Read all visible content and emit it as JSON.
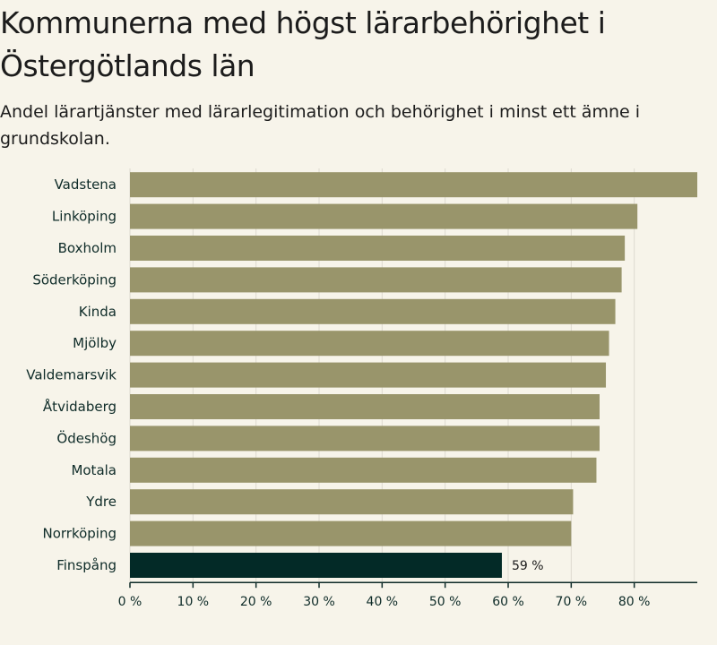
{
  "title": "Kommunerna med högst lärarbehörighet i Östergötlands län",
  "subtitle": "Andel lärartjänster med lärarlegitimation och behörighet i minst ett ämne i grundskolan.",
  "colors": {
    "bar": "#99956b",
    "highlight": "#032a27",
    "grid": "#dedad0",
    "axis": "#0e2b28",
    "background": "#f7f4ea"
  },
  "chart_data": {
    "type": "bar",
    "orientation": "horizontal",
    "title": "Kommunerna med högst lärarbehörighet i Östergötlands län",
    "subtitle": "Andel lärartjänster med lärarlegitimation och behörighet i minst ett ämne i grundskolan.",
    "categories": [
      "Vadstena",
      "Linköping",
      "Boxholm",
      "Söderköping",
      "Kinda",
      "Mjölby",
      "Valdemarsvik",
      "Åtvidaberg",
      "Ödeshög",
      "Motala",
      "Ydre",
      "Norrköping",
      "Finspång"
    ],
    "values": [
      90,
      80.5,
      78.5,
      78,
      77,
      76,
      75.5,
      74.5,
      74.5,
      74,
      70.3,
      70,
      59
    ],
    "highlight": "Finspång",
    "data_labels": [
      {
        "category": "Finspång",
        "text": "59 %"
      }
    ],
    "xlim": [
      0,
      90
    ],
    "ticks": [
      0,
      10,
      20,
      30,
      40,
      50,
      60,
      70,
      80
    ],
    "tick_labels": [
      "0 %",
      "10 %",
      "20 %",
      "30 %",
      "40 %",
      "50 %",
      "60 %",
      "70 %",
      "80 %"
    ],
    "xlabel": "",
    "ylabel": "",
    "grid": true
  }
}
